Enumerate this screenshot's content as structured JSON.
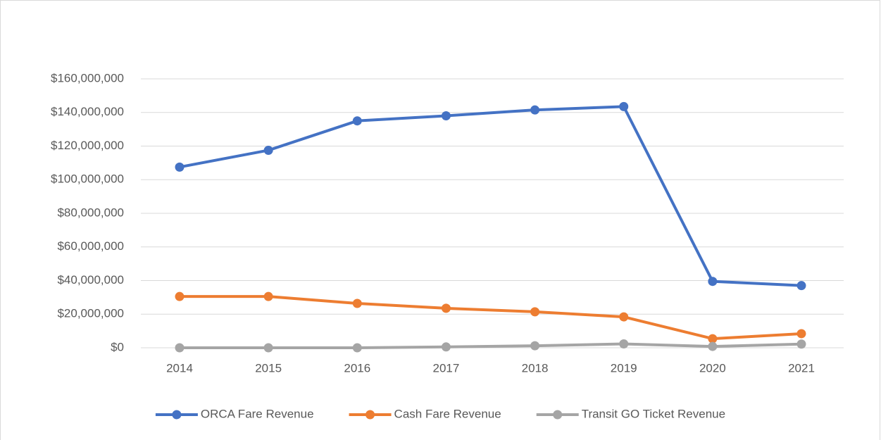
{
  "chart_data": {
    "type": "line",
    "categories": [
      "2014",
      "2015",
      "2016",
      "2017",
      "2018",
      "2019",
      "2020",
      "2021"
    ],
    "series": [
      {
        "name": "ORCA Fare Revenue",
        "color": "#4472c4",
        "values": [
          107500000,
          117500000,
          135000000,
          138000000,
          141500000,
          143500000,
          39500000,
          37000000
        ]
      },
      {
        "name": "Cash Fare Revenue",
        "color": "#ed7d31",
        "values": [
          30500000,
          30500000,
          26400000,
          23500000,
          21400000,
          18400000,
          5400000,
          8400000
        ]
      },
      {
        "name": "Transit GO Ticket Revenue",
        "color": "#a5a5a5",
        "values": [
          0,
          0,
          0,
          500000,
          1200000,
          2300000,
          800000,
          2200000
        ]
      }
    ],
    "ylim": [
      0,
      160000000
    ],
    "yticks": [
      {
        "value": 0,
        "label": "$0"
      },
      {
        "value": 20000000,
        "label": "$20,000,000"
      },
      {
        "value": 40000000,
        "label": "$40,000,000"
      },
      {
        "value": 60000000,
        "label": "$60,000,000"
      },
      {
        "value": 80000000,
        "label": "$80,000,000"
      },
      {
        "value": 100000000,
        "label": "$100,000,000"
      },
      {
        "value": 120000000,
        "label": "$120,000,000"
      },
      {
        "value": 140000000,
        "label": "$140,000,000"
      },
      {
        "value": 160000000,
        "label": "$160,000,000"
      }
    ],
    "grid": true,
    "legend": "bottom"
  }
}
